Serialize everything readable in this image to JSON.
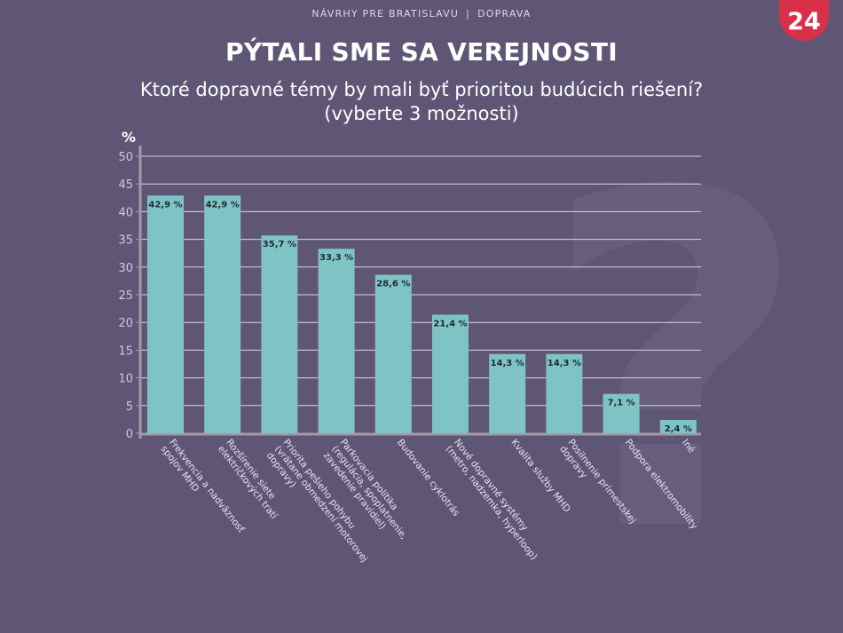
{
  "header": {
    "left": "NÁVRHY PRE BRATISLAVU",
    "right": "DOPRAVA"
  },
  "logo": {
    "text": "24",
    "color": "#d9304a"
  },
  "title": "PÝTALI SME SA VEREJNOSTI",
  "subtitle_line1": "Ktoré dopravné témy by mali byť prioritou budúcich riešení?",
  "subtitle_line2": "(vyberte 3 možnosti)",
  "colors": {
    "background": "#5f5675",
    "bar": "#7fc4c4",
    "grid": "#d8d4e0",
    "axis": "#a39aa8"
  },
  "chart_data": {
    "type": "bar",
    "ylabel": "%",
    "ylim": [
      0,
      50
    ],
    "yticks": [
      0,
      5,
      10,
      15,
      20,
      25,
      30,
      35,
      40,
      45,
      50
    ],
    "categories": [
      "Frekvencia a nadväznosť spojov MHD",
      "Rozšírenie siete električkových tratí",
      "Priorita pešieho pohybu (vrátane obmedzení motorovej dopravy)",
      "Parkovacia politika (regulácia, spoplatnenie, zavedenie pravidiel)",
      "Budovanie cyklotrás",
      "Nové dopravné systémy (metro, nadzemka, hyperloop)",
      "Kvalita služby MHD",
      "Posilnenie prímestskej dopravy",
      "Podpora elektromobility",
      "Iné"
    ],
    "values": [
      42.9,
      42.9,
      35.7,
      33.3,
      28.6,
      21.4,
      14.3,
      14.3,
      7.1,
      2.4
    ],
    "value_labels": [
      "42,9 %",
      "42,9 %",
      "35,7 %",
      "33,3 %",
      "28,6 %",
      "21,4 %",
      "14,3 %",
      "14,3 %",
      "7,1 %",
      "2,4 %"
    ],
    "grid": true
  }
}
